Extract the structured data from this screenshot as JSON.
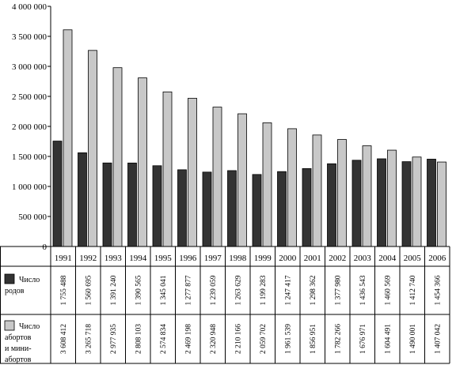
{
  "chart_data": {
    "type": "bar",
    "title": "",
    "xlabel": "",
    "ylabel": "",
    "ylim": [
      0,
      4000000
    ],
    "grid": false,
    "legend": "table-left",
    "yticks": [
      "0",
      "500 000",
      "1 000 000",
      "1 500 000",
      "2 000 000",
      "2 500 000",
      "3 000 000",
      "3 500 000",
      "4 000 000"
    ],
    "yticks_values": [
      0,
      500000,
      1000000,
      1500000,
      2000000,
      2500000,
      3000000,
      3500000,
      4000000
    ],
    "categories": [
      "1991",
      "1992",
      "1993",
      "1994",
      "1995",
      "1996",
      "1997",
      "1998",
      "1999",
      "2000",
      "2001",
      "2002",
      "2003",
      "2004",
      "2005",
      "2006"
    ],
    "series": [
      {
        "name": "Число родов",
        "legend_lines": [
          "Число",
          "родов"
        ],
        "color": "#333333",
        "values": [
          1755488,
          1560695,
          1391240,
          1390565,
          1345041,
          1277877,
          1239059,
          1263629,
          1199283,
          1247417,
          1298362,
          1377980,
          1436543,
          1460569,
          1412740,
          1454366
        ],
        "labels": [
          "1 755 488",
          "1 560 695",
          "1 391 240",
          "1 390 565",
          "1 345 041",
          "1 277 877",
          "1 239 059",
          "1 263 629",
          "1 199 283",
          "1 247 417",
          "1 298 362",
          "1 377 980",
          "1 436 543",
          "1 460 569",
          "1 412 740",
          "1 454 366"
        ]
      },
      {
        "name": "Число абортов и мини-абортов",
        "legend_lines": [
          "Число",
          "абортов",
          "и мини-",
          "абортов"
        ],
        "color": "#c8c8c8",
        "values": [
          3608412,
          3265718,
          2977935,
          2808103,
          2574834,
          2469198,
          2320948,
          2210166,
          2059702,
          1961539,
          1856951,
          1782266,
          1676971,
          1604491,
          1490001,
          1407042
        ],
        "labels": [
          "3 608 412",
          "3 265 718",
          "2 977 935",
          "2 808 103",
          "2 574 834",
          "2 469 198",
          "2 320 948",
          "2 210 166",
          "2 059 702",
          "1 961 539",
          "1 856 951",
          "1 782 266",
          "1 676 971",
          "1 604 491",
          "1 490 001",
          "1 407 042"
        ]
      }
    ]
  }
}
